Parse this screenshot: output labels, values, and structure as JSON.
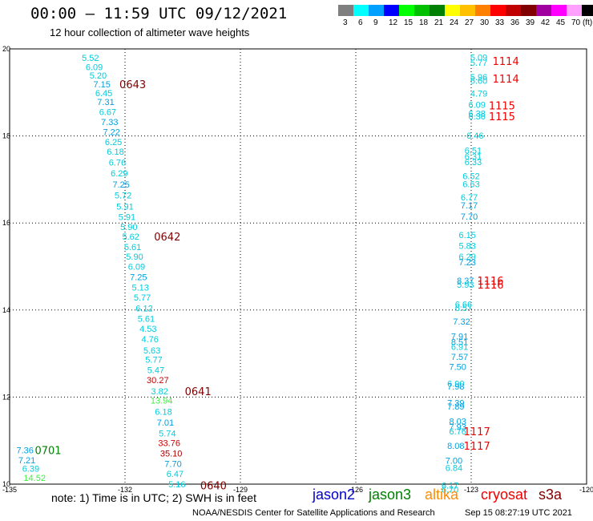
{
  "header": {
    "title": "00:00 – 11:59 UTC 09/12/2021",
    "subtitle": "12 hour collection of altimeter wave heights"
  },
  "color_scale": {
    "unit": "(ft)",
    "bins": [
      {
        "label": "3",
        "color": "#7f7f7f"
      },
      {
        "label": "6",
        "color": "#00ffff"
      },
      {
        "label": "9",
        "color": "#00a0ff"
      },
      {
        "label": "12",
        "color": "#0000ff"
      },
      {
        "label": "15",
        "color": "#00ff00"
      },
      {
        "label": "18",
        "color": "#00c000"
      },
      {
        "label": "21",
        "color": "#008000"
      },
      {
        "label": "24",
        "color": "#ffff00"
      },
      {
        "label": "27",
        "color": "#ffc000"
      },
      {
        "label": "30",
        "color": "#ff8000"
      },
      {
        "label": "33",
        "color": "#ff0000"
      },
      {
        "label": "36",
        "color": "#c00000"
      },
      {
        "label": "39",
        "color": "#800000"
      },
      {
        "label": "42",
        "color": "#a000a0"
      },
      {
        "label": "45",
        "color": "#ff00ff"
      },
      {
        "label": "70",
        "color": "#ffa0ff"
      },
      {
        "label": "",
        "color": "#000000"
      }
    ]
  },
  "chart_data": {
    "type": "scatter",
    "xlim": [
      -135,
      -120
    ],
    "ylim": [
      10,
      20
    ],
    "x_ticks": [
      "-135",
      "-132",
      "-129",
      "-126",
      "-123",
      "-120"
    ],
    "y_ticks": [
      "20",
      "18",
      "16",
      "14",
      "12",
      "10"
    ],
    "grid": true,
    "points": [
      {
        "lon": -132.9,
        "lat": 19.8,
        "text": "5.52",
        "color": "#00ccdd"
      },
      {
        "lon": -132.8,
        "lat": 19.59,
        "text": "6.09",
        "color": "#00ccdd"
      },
      {
        "lon": -132.7,
        "lat": 19.39,
        "text": "5.20",
        "color": "#00ccdd"
      },
      {
        "lon": -132.6,
        "lat": 19.19,
        "text": "7.15",
        "color": "#00a0e0"
      },
      {
        "lon": -132.55,
        "lat": 18.99,
        "text": "6.45",
        "color": "#00ccdd"
      },
      {
        "lon": -132.5,
        "lat": 18.78,
        "text": "7.31",
        "color": "#00a0e0"
      },
      {
        "lon": -132.45,
        "lat": 18.55,
        "text": "6.67",
        "color": "#00ccdd"
      },
      {
        "lon": -132.4,
        "lat": 18.32,
        "text": "7.33",
        "color": "#00a0e0"
      },
      {
        "lon": -132.35,
        "lat": 18.09,
        "text": "7.22",
        "color": "#00a0e0"
      },
      {
        "lon": -132.3,
        "lat": 17.86,
        "text": "6.25",
        "color": "#00ccdd"
      },
      {
        "lon": -132.25,
        "lat": 17.64,
        "text": "6.18",
        "color": "#00ccdd"
      },
      {
        "lon": -132.2,
        "lat": 17.39,
        "text": "6.76",
        "color": "#00ccdd"
      },
      {
        "lon": -132.15,
        "lat": 17.15,
        "text": "6.29",
        "color": "#00ccdd"
      },
      {
        "lon": -132.1,
        "lat": 16.89,
        "text": "7.25",
        "color": "#00a0e0"
      },
      {
        "lon": -132.05,
        "lat": 16.64,
        "text": "5.72",
        "color": "#00ccdd"
      },
      {
        "lon": -132.0,
        "lat": 16.38,
        "text": "5.91",
        "color": "#00ccdd"
      },
      {
        "lon": -131.95,
        "lat": 16.14,
        "text": "5.91",
        "color": "#00ccdd"
      },
      {
        "lon": -131.9,
        "lat": 15.91,
        "text": "5.90",
        "color": "#00ccdd"
      },
      {
        "lon": -131.85,
        "lat": 15.69,
        "text": "5.62",
        "color": "#00ccdd"
      },
      {
        "lon": -131.8,
        "lat": 15.45,
        "text": "5.61",
        "color": "#00ccdd"
      },
      {
        "lon": -131.75,
        "lat": 15.23,
        "text": "5.90",
        "color": "#00ccdd"
      },
      {
        "lon": -131.7,
        "lat": 15.0,
        "text": "6.09",
        "color": "#00ccdd"
      },
      {
        "lon": -131.65,
        "lat": 14.76,
        "text": "7.25",
        "color": "#00a0e0"
      },
      {
        "lon": -131.6,
        "lat": 14.52,
        "text": "5.13",
        "color": "#00ccdd"
      },
      {
        "lon": -131.55,
        "lat": 14.29,
        "text": "5.77",
        "color": "#00ccdd"
      },
      {
        "lon": -131.5,
        "lat": 14.04,
        "text": "6.12",
        "color": "#00ccdd"
      },
      {
        "lon": -131.45,
        "lat": 13.8,
        "text": "5.61",
        "color": "#00ccdd"
      },
      {
        "lon": -131.4,
        "lat": 13.57,
        "text": "4.53",
        "color": "#00ccdd"
      },
      {
        "lon": -131.35,
        "lat": 13.33,
        "text": "4.76",
        "color": "#00ccdd"
      },
      {
        "lon": -131.3,
        "lat": 13.08,
        "text": "5.63",
        "color": "#00ccdd"
      },
      {
        "lon": -131.25,
        "lat": 12.86,
        "text": "5.77",
        "color": "#00ccdd"
      },
      {
        "lon": -131.2,
        "lat": 12.62,
        "text": "5.47",
        "color": "#00ccdd"
      },
      {
        "lon": -131.15,
        "lat": 12.39,
        "text": "30.27",
        "color": "#cc0000"
      },
      {
        "lon": -131.1,
        "lat": 12.14,
        "text": "3.82",
        "color": "#00ccdd"
      },
      {
        "lon": -131.05,
        "lat": 11.92,
        "text": "13.94",
        "color": "#44ee44"
      },
      {
        "lon": -131.0,
        "lat": 11.67,
        "text": "6.18",
        "color": "#00ccdd"
      },
      {
        "lon": -130.95,
        "lat": 11.42,
        "text": "7.01",
        "color": "#00a0e0"
      },
      {
        "lon": -130.9,
        "lat": 11.17,
        "text": "5.74",
        "color": "#00ccdd"
      },
      {
        "lon": -130.85,
        "lat": 10.95,
        "text": "33.76",
        "color": "#cc0000"
      },
      {
        "lon": -130.8,
        "lat": 10.71,
        "text": "35.10",
        "color": "#aa0000"
      },
      {
        "lon": -130.75,
        "lat": 10.47,
        "text": "7.70",
        "color": "#00a0e0"
      },
      {
        "lon": -130.7,
        "lat": 10.24,
        "text": "6.47",
        "color": "#00ccdd"
      },
      {
        "lon": -130.65,
        "lat": 10.0,
        "text": "5.16",
        "color": "#00ccdd"
      },
      {
        "lon": -134.6,
        "lat": 10.78,
        "text": "7.36",
        "color": "#00a0e0"
      },
      {
        "lon": -134.55,
        "lat": 10.55,
        "text": "7.21",
        "color": "#00a0e0"
      },
      {
        "lon": -134.45,
        "lat": 10.36,
        "text": "6.39",
        "color": "#00ccdd"
      },
      {
        "lon": -134.35,
        "lat": 10.15,
        "text": "14.52",
        "color": "#44ee44"
      },
      {
        "lon": -122.8,
        "lat": 19.81,
        "text": "5.09",
        "color": "#00ccdd"
      },
      {
        "lon": -122.8,
        "lat": 19.69,
        "text": "5.77",
        "color": "#00ccdd"
      },
      {
        "lon": -122.8,
        "lat": 19.36,
        "text": "5.96",
        "color": "#00ccdd"
      },
      {
        "lon": -122.8,
        "lat": 19.27,
        "text": "5.60",
        "color": "#00ccdd"
      },
      {
        "lon": -122.8,
        "lat": 18.98,
        "text": "4.79",
        "color": "#00ccdd"
      },
      {
        "lon": -122.85,
        "lat": 18.72,
        "text": "6.09",
        "color": "#00ccdd"
      },
      {
        "lon": -122.85,
        "lat": 18.52,
        "text": "6.38",
        "color": "#00ccdd"
      },
      {
        "lon": -122.85,
        "lat": 18.45,
        "text": "6.36",
        "color": "#00ccdd"
      },
      {
        "lon": -122.9,
        "lat": 18.01,
        "text": "6.46",
        "color": "#00ccdd"
      },
      {
        "lon": -122.95,
        "lat": 17.67,
        "text": "6.51",
        "color": "#00ccdd"
      },
      {
        "lon": -122.95,
        "lat": 17.53,
        "text": "6.31",
        "color": "#00ccdd"
      },
      {
        "lon": -122.95,
        "lat": 17.4,
        "text": "6.33",
        "color": "#00ccdd"
      },
      {
        "lon": -123.0,
        "lat": 17.08,
        "text": "6.52",
        "color": "#00ccdd"
      },
      {
        "lon": -123.0,
        "lat": 16.9,
        "text": "6.63",
        "color": "#00ccdd"
      },
      {
        "lon": -123.05,
        "lat": 16.59,
        "text": "6.77",
        "color": "#00ccdd"
      },
      {
        "lon": -123.05,
        "lat": 16.41,
        "text": "7.17",
        "color": "#00a0e0"
      },
      {
        "lon": -123.05,
        "lat": 16.15,
        "text": "7.70",
        "color": "#00a0e0"
      },
      {
        "lon": -123.1,
        "lat": 15.73,
        "text": "6.15",
        "color": "#00ccdd"
      },
      {
        "lon": -123.1,
        "lat": 15.48,
        "text": "5.83",
        "color": "#00ccdd"
      },
      {
        "lon": -123.1,
        "lat": 15.23,
        "text": "6.29",
        "color": "#00ccdd"
      },
      {
        "lon": -123.1,
        "lat": 15.1,
        "text": "7.23",
        "color": "#00a0e0"
      },
      {
        "lon": -123.15,
        "lat": 14.68,
        "text": "8.37",
        "color": "#00a0e0"
      },
      {
        "lon": -123.15,
        "lat": 14.59,
        "text": "5.93",
        "color": "#00ccdd"
      },
      {
        "lon": -123.2,
        "lat": 14.13,
        "text": "6.66",
        "color": "#00ccdd"
      },
      {
        "lon": -123.2,
        "lat": 14.05,
        "text": "6.57",
        "color": "#00ccdd"
      },
      {
        "lon": -123.25,
        "lat": 13.74,
        "text": "7.32",
        "color": "#00a0e0"
      },
      {
        "lon": -123.3,
        "lat": 13.4,
        "text": "7.91",
        "color": "#00a0e0"
      },
      {
        "lon": -123.3,
        "lat": 13.27,
        "text": "8.51",
        "color": "#00a0e0"
      },
      {
        "lon": -123.3,
        "lat": 13.16,
        "text": "6.91",
        "color": "#00ccdd"
      },
      {
        "lon": -123.3,
        "lat": 12.93,
        "text": "7.57",
        "color": "#00a0e0"
      },
      {
        "lon": -123.35,
        "lat": 12.7,
        "text": "7.50",
        "color": "#00a0e0"
      },
      {
        "lon": -123.4,
        "lat": 12.31,
        "text": "6.90",
        "color": "#00ccdd"
      },
      {
        "lon": -123.4,
        "lat": 12.25,
        "text": "7.98",
        "color": "#00a0e0"
      },
      {
        "lon": -123.4,
        "lat": 11.87,
        "text": "7.39",
        "color": "#00a0e0"
      },
      {
        "lon": -123.4,
        "lat": 11.79,
        "text": "7.89",
        "color": "#00a0e0"
      },
      {
        "lon": -123.35,
        "lat": 11.45,
        "text": "8.03",
        "color": "#00a0e0"
      },
      {
        "lon": -123.35,
        "lat": 11.32,
        "text": "7.93",
        "color": "#00a0e0"
      },
      {
        "lon": -123.35,
        "lat": 11.22,
        "text": "6.76",
        "color": "#00ccdd"
      },
      {
        "lon": -123.4,
        "lat": 10.88,
        "text": "8.08",
        "color": "#00a0e0"
      },
      {
        "lon": -123.45,
        "lat": 10.54,
        "text": "7.00",
        "color": "#00a0e0"
      },
      {
        "lon": -123.45,
        "lat": 10.38,
        "text": "6.84",
        "color": "#00ccdd"
      },
      {
        "lon": -123.55,
        "lat": 9.97,
        "text": "6.17",
        "color": "#00ccdd"
      },
      {
        "lon": -123.55,
        "lat": 9.88,
        "text": "6.70",
        "color": "#00ccdd"
      }
    ],
    "time_labels": [
      {
        "lon": -131.8,
        "lat": 19.19,
        "text": "0643",
        "color": "#800000"
      },
      {
        "lon": -130.9,
        "lat": 15.69,
        "text": "0642",
        "color": "#800000"
      },
      {
        "lon": -130.1,
        "lat": 12.14,
        "text": "0641",
        "color": "#800000"
      },
      {
        "lon": -129.7,
        "lat": 9.97,
        "text": "0640",
        "color": "#800000"
      },
      {
        "lon": -134.0,
        "lat": 10.78,
        "text": "0701",
        "color": "#008000"
      },
      {
        "lon": -122.1,
        "lat": 19.72,
        "text": "1114",
        "color": "#ee0000"
      },
      {
        "lon": -122.1,
        "lat": 19.32,
        "text": "1114",
        "color": "#ee0000"
      },
      {
        "lon": -122.2,
        "lat": 18.7,
        "text": "1115",
        "color": "#ee0000"
      },
      {
        "lon": -122.2,
        "lat": 18.45,
        "text": "1115",
        "color": "#ee0000"
      },
      {
        "lon": -122.5,
        "lat": 14.68,
        "text": "1116",
        "color": "#ee0000"
      },
      {
        "lon": -122.5,
        "lat": 14.59,
        "text": "1116",
        "color": "#ee0000"
      },
      {
        "lon": -122.85,
        "lat": 11.22,
        "text": "1117",
        "color": "#ee0000"
      },
      {
        "lon": -122.85,
        "lat": 10.88,
        "text": "1117",
        "color": "#ee0000"
      }
    ]
  },
  "note": "note:  1) Time is in UTC;  2) SWH is in feet",
  "legend": [
    {
      "text": "jason2",
      "color": "#0000cc"
    },
    {
      "text": "jason3",
      "color": "#008000"
    },
    {
      "text": "altika",
      "color": "#ff8c00"
    },
    {
      "text": "cryosat",
      "color": "#ee0000"
    },
    {
      "text": "s3a",
      "color": "#800000"
    }
  ],
  "footer": {
    "credit": "NOAA/NESDIS Center for Satellite Applications and Research",
    "timestamp": "Sep 15 08:27:19 UTC 2021"
  }
}
